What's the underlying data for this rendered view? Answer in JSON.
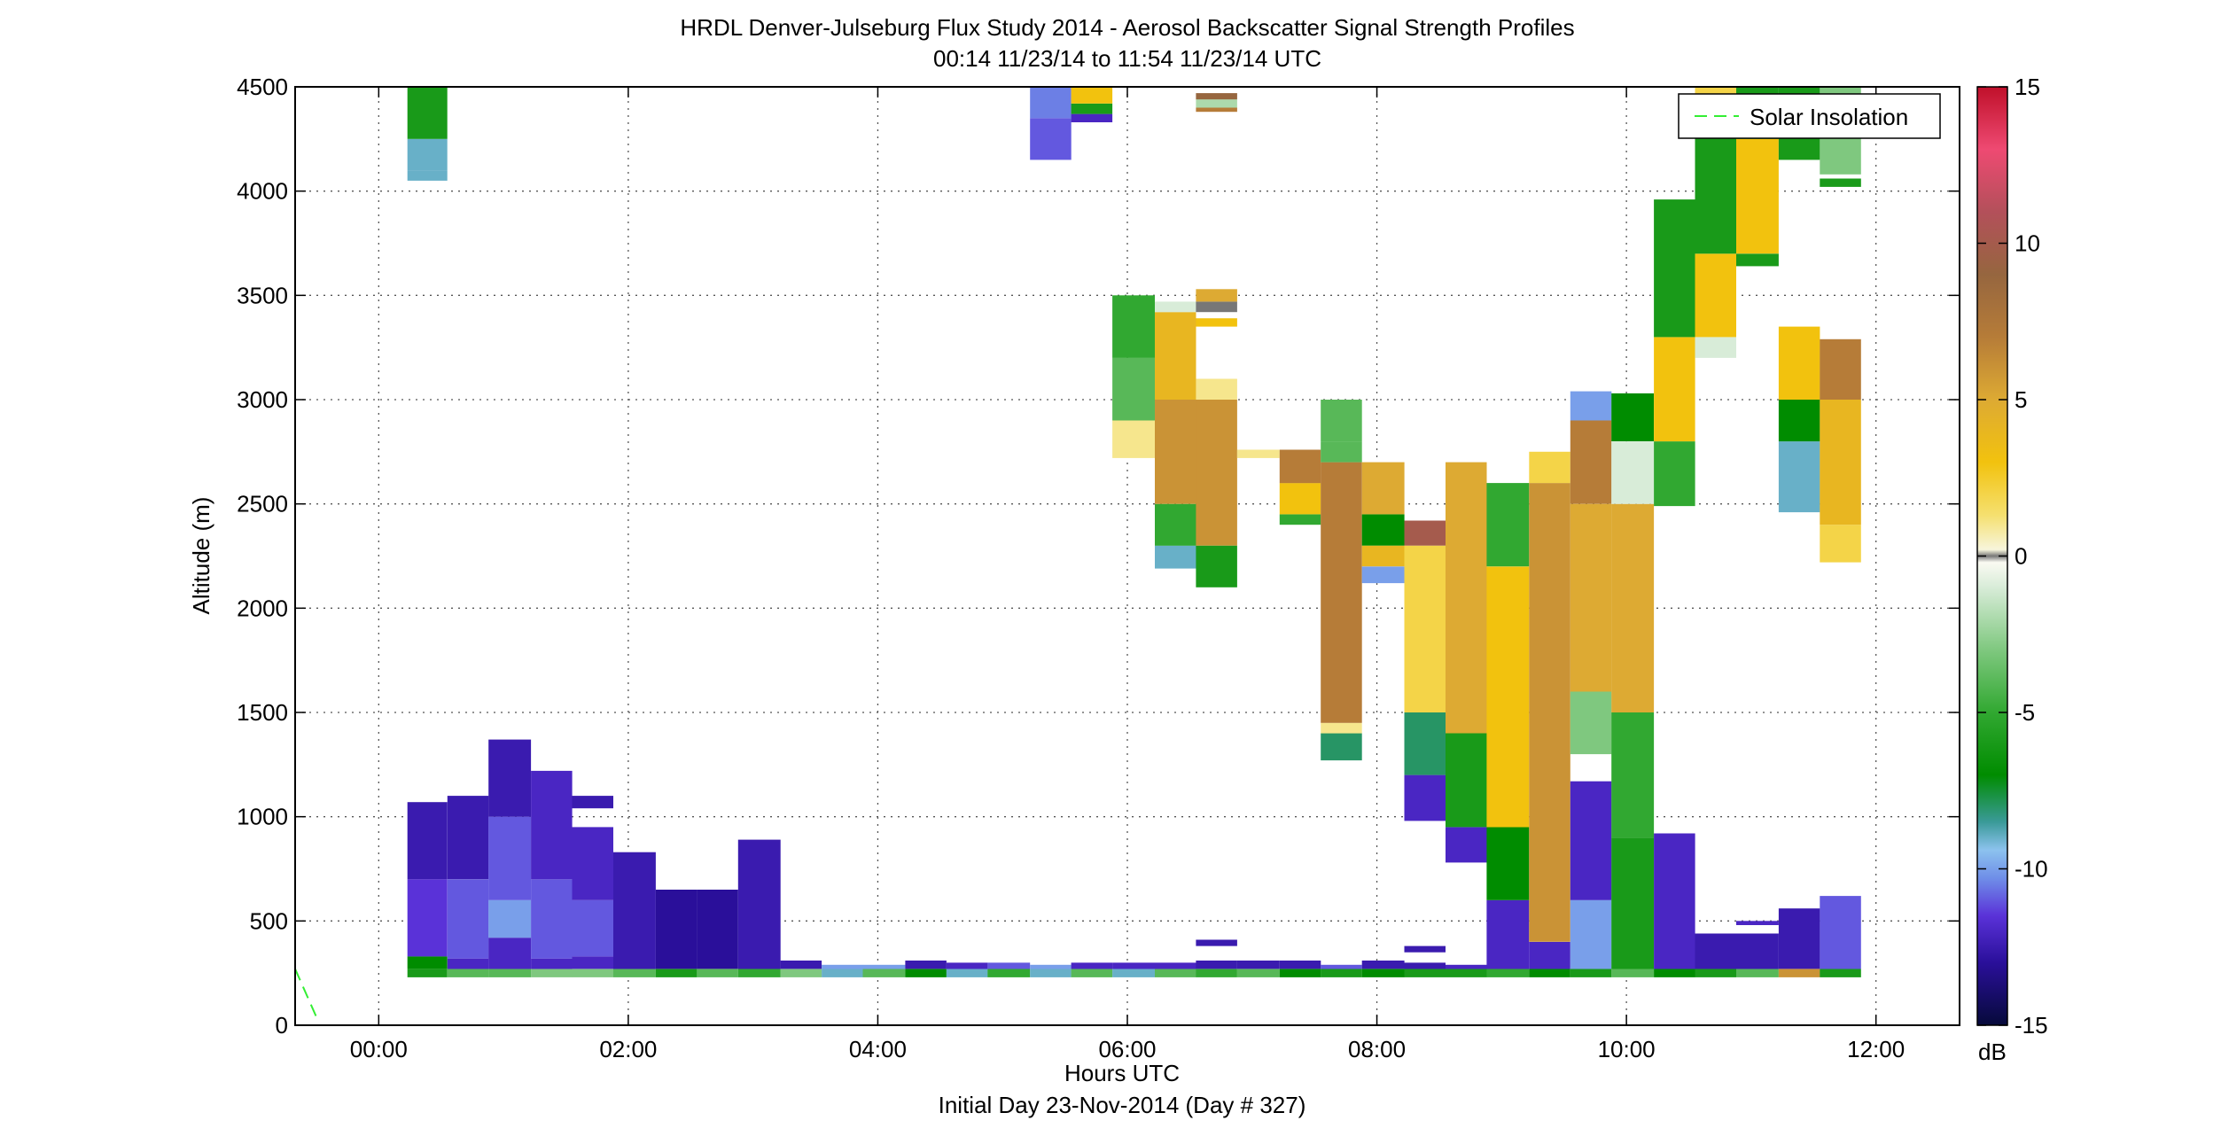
{
  "chart_data": {
    "type": "heatmap",
    "title": "HRDL Denver-Julseburg Flux Study 2014 - Aerosol Backscatter Signal Strength Profiles",
    "subtitle": "00:14 11/23/14 to 11:54 11/23/14  UTC",
    "xlabel": "Hours UTC",
    "xlabel2": "Initial Day 23-Nov-2014 (Day # 327)",
    "ylabel": "Altitude (m)",
    "colorbar_label": "dB",
    "xlim": [
      -0.67,
      12.67
    ],
    "ylim": [
      0,
      4500
    ],
    "clim": [
      -15,
      15
    ],
    "x_ticks": [
      0,
      2,
      4,
      6,
      8,
      10,
      12
    ],
    "x_tick_labels": [
      "00:00",
      "02:00",
      "04:00",
      "06:00",
      "08:00",
      "10:00",
      "12:00"
    ],
    "y_ticks": [
      0,
      500,
      1000,
      1500,
      2000,
      2500,
      3000,
      3500,
      4000,
      4500
    ],
    "y_tick_labels": [
      "0",
      "500",
      "1000",
      "1500",
      "2000",
      "2500",
      "3000",
      "3500",
      "4000",
      "4500"
    ],
    "colorbar_ticks": [
      -15,
      -10,
      -5,
      0,
      5,
      10,
      15
    ],
    "colorbar_tick_labels": [
      "-15",
      "-10",
      "-5",
      "0",
      "5",
      "10",
      "15"
    ],
    "grid": true,
    "legend": {
      "position": "top-right",
      "entries": [
        "Solar Insolation"
      ]
    },
    "solar_insolation": {
      "x": [
        -0.67,
        -0.5
      ],
      "y": [
        270,
        40
      ]
    },
    "profiles": [
      {
        "x0": 0.23,
        "x1": 0.55,
        "segments": [
          [
            230,
            270,
            -6
          ],
          [
            270,
            330,
            -7
          ],
          [
            330,
            700,
            -11.5
          ],
          [
            700,
            1070,
            -12.5
          ],
          [
            4050,
            4100,
            -9
          ],
          [
            4100,
            4250,
            -9
          ],
          [
            4250,
            4500,
            -6
          ]
        ]
      },
      {
        "x0": 0.55,
        "x1": 0.88,
        "segments": [
          [
            230,
            270,
            -4
          ],
          [
            270,
            320,
            -12
          ],
          [
            320,
            700,
            -11
          ],
          [
            700,
            1100,
            -12.5
          ]
        ]
      },
      {
        "x0": 0.88,
        "x1": 1.22,
        "segments": [
          [
            230,
            270,
            -4
          ],
          [
            270,
            420,
            -12
          ],
          [
            420,
            600,
            -10
          ],
          [
            600,
            1000,
            -11
          ],
          [
            1000,
            1370,
            -12.5
          ]
        ]
      },
      {
        "x0": 1.22,
        "x1": 1.55,
        "segments": [
          [
            230,
            270,
            -3
          ],
          [
            270,
            320,
            -12
          ],
          [
            320,
            700,
            -11
          ],
          [
            700,
            1220,
            -12
          ]
        ]
      },
      {
        "x0": 1.55,
        "x1": 1.88,
        "segments": [
          [
            230,
            270,
            -3
          ],
          [
            270,
            330,
            -12
          ],
          [
            330,
            600,
            -11
          ],
          [
            600,
            950,
            -12
          ],
          [
            1040,
            1100,
            -12.5
          ]
        ]
      },
      {
        "x0": 1.88,
        "x1": 2.22,
        "segments": [
          [
            230,
            270,
            -4
          ],
          [
            270,
            830,
            -12.5
          ]
        ]
      },
      {
        "x0": 2.22,
        "x1": 2.55,
        "segments": [
          [
            230,
            270,
            -6
          ],
          [
            270,
            650,
            -13
          ]
        ]
      },
      {
        "x0": 2.55,
        "x1": 2.88,
        "segments": [
          [
            230,
            270,
            -4
          ],
          [
            270,
            650,
            -13
          ]
        ]
      },
      {
        "x0": 2.88,
        "x1": 3.22,
        "segments": [
          [
            230,
            270,
            -5
          ],
          [
            270,
            890,
            -12.5
          ]
        ]
      },
      {
        "x0": 3.22,
        "x1": 3.55,
        "segments": [
          [
            230,
            270,
            -3
          ],
          [
            270,
            310,
            -12.5
          ]
        ]
      },
      {
        "x0": 3.55,
        "x1": 3.88,
        "segments": [
          [
            230,
            270,
            -9
          ],
          [
            270,
            290,
            -10
          ]
        ]
      },
      {
        "x0": 3.88,
        "x1": 4.22,
        "segments": [
          [
            230,
            270,
            -4
          ],
          [
            270,
            290,
            -10
          ]
        ]
      },
      {
        "x0": 4.22,
        "x1": 4.55,
        "segments": [
          [
            230,
            270,
            -7
          ],
          [
            270,
            310,
            -12.5
          ]
        ]
      },
      {
        "x0": 4.55,
        "x1": 4.88,
        "segments": [
          [
            230,
            270,
            -9
          ],
          [
            270,
            300,
            -12
          ]
        ]
      },
      {
        "x0": 4.88,
        "x1": 5.22,
        "segments": [
          [
            230,
            270,
            -5
          ],
          [
            270,
            300,
            -11
          ]
        ]
      },
      {
        "x0": 5.22,
        "x1": 5.55,
        "segments": [
          [
            230,
            270,
            -9
          ],
          [
            270,
            290,
            -10
          ],
          [
            4150,
            4350,
            -11
          ],
          [
            4350,
            4500,
            -10.5
          ]
        ]
      },
      {
        "x0": 5.55,
        "x1": 5.88,
        "segments": [
          [
            230,
            270,
            -4
          ],
          [
            270,
            300,
            -12
          ],
          [
            4330,
            4370,
            -12
          ],
          [
            4370,
            4420,
            -6
          ],
          [
            4420,
            4500,
            3
          ]
        ]
      },
      {
        "x0": 5.88,
        "x1": 6.22,
        "segments": [
          [
            230,
            270,
            -9
          ],
          [
            270,
            300,
            -12
          ],
          [
            2720,
            2900,
            1
          ],
          [
            2900,
            3200,
            -4
          ],
          [
            3200,
            3500,
            -5
          ]
        ]
      },
      {
        "x0": 6.22,
        "x1": 6.55,
        "segments": [
          [
            230,
            270,
            -4
          ],
          [
            270,
            300,
            -12
          ],
          [
            2190,
            2300,
            -9
          ],
          [
            2300,
            2500,
            -5
          ],
          [
            2500,
            3000,
            6
          ],
          [
            3000,
            3420,
            4
          ],
          [
            3420,
            3470,
            -1
          ]
        ]
      },
      {
        "x0": 6.55,
        "x1": 6.88,
        "segments": [
          [
            230,
            270,
            -5
          ],
          [
            270,
            310,
            -12.5
          ],
          [
            380,
            410,
            -12.5
          ],
          [
            2100,
            2300,
            -6
          ],
          [
            2300,
            3000,
            6
          ],
          [
            3000,
            3100,
            1
          ],
          [
            3350,
            3390,
            3
          ],
          [
            3420,
            3470,
            0
          ],
          [
            3470,
            3530,
            5
          ],
          [
            4380,
            4400,
            7
          ],
          [
            4400,
            4440,
            -2
          ],
          [
            4440,
            4470,
            9
          ]
        ]
      },
      {
        "x0": 6.88,
        "x1": 7.22,
        "segments": [
          [
            230,
            270,
            -4
          ],
          [
            270,
            310,
            -12.5
          ],
          [
            2720,
            2760,
            1
          ]
        ]
      },
      {
        "x0": 7.22,
        "x1": 7.55,
        "segments": [
          [
            230,
            270,
            -7
          ],
          [
            270,
            310,
            -12.5
          ],
          [
            2400,
            2450,
            -5
          ],
          [
            2450,
            2600,
            3
          ],
          [
            2600,
            2760,
            7
          ]
        ]
      },
      {
        "x0": 7.55,
        "x1": 7.88,
        "segments": [
          [
            230,
            270,
            -6
          ],
          [
            270,
            290,
            -11
          ],
          [
            1270,
            1400,
            -8
          ],
          [
            1400,
            1450,
            1
          ],
          [
            1450,
            2700,
            7
          ],
          [
            2700,
            2800,
            -4
          ],
          [
            2800,
            3000,
            -4
          ]
        ]
      },
      {
        "x0": 7.88,
        "x1": 8.22,
        "segments": [
          [
            230,
            270,
            -7
          ],
          [
            270,
            310,
            -12.5
          ],
          [
            2120,
            2200,
            -10
          ],
          [
            2200,
            2300,
            4
          ],
          [
            2300,
            2450,
            -7
          ],
          [
            2450,
            2700,
            5
          ]
        ]
      },
      {
        "x0": 8.22,
        "x1": 8.55,
        "segments": [
          [
            230,
            270,
            -6
          ],
          [
            270,
            300,
            -12.5
          ],
          [
            350,
            380,
            -12.5
          ],
          [
            980,
            1200,
            -12
          ],
          [
            1200,
            1500,
            -8
          ],
          [
            1500,
            2300,
            2
          ],
          [
            2300,
            2420,
            10
          ]
        ]
      },
      {
        "x0": 8.55,
        "x1": 8.88,
        "segments": [
          [
            230,
            270,
            -6
          ],
          [
            270,
            290,
            -12
          ],
          [
            780,
            950,
            -12
          ],
          [
            950,
            1400,
            -6
          ],
          [
            1400,
            2700,
            5
          ]
        ]
      },
      {
        "x0": 8.88,
        "x1": 9.22,
        "segments": [
          [
            230,
            270,
            -5
          ],
          [
            270,
            600,
            -12
          ],
          [
            600,
            950,
            -7
          ],
          [
            950,
            2200,
            3
          ],
          [
            2200,
            2600,
            -5
          ]
        ]
      },
      {
        "x0": 9.22,
        "x1": 9.55,
        "segments": [
          [
            230,
            270,
            -7
          ],
          [
            270,
            400,
            -12
          ],
          [
            400,
            2600,
            6
          ],
          [
            2600,
            2750,
            2
          ]
        ]
      },
      {
        "x0": 9.55,
        "x1": 9.88,
        "segments": [
          [
            230,
            270,
            -6
          ],
          [
            270,
            600,
            -10
          ],
          [
            600,
            1170,
            -12
          ],
          [
            1300,
            1600,
            -3
          ],
          [
            1600,
            2500,
            5
          ],
          [
            2500,
            2900,
            7
          ],
          [
            2900,
            3040,
            -10
          ]
        ]
      },
      {
        "x0": 9.88,
        "x1": 10.22,
        "segments": [
          [
            230,
            270,
            -4
          ],
          [
            270,
            900,
            -6
          ],
          [
            900,
            1500,
            -5
          ],
          [
            1500,
            2500,
            5
          ],
          [
            2500,
            2800,
            -1
          ],
          [
            2800,
            3030,
            -7
          ]
        ]
      },
      {
        "x0": 10.22,
        "x1": 10.55,
        "segments": [
          [
            230,
            270,
            -7
          ],
          [
            270,
            920,
            -12
          ],
          [
            2490,
            2800,
            -5
          ],
          [
            2800,
            3300,
            3
          ],
          [
            3300,
            3960,
            -6
          ]
        ]
      },
      {
        "x0": 10.55,
        "x1": 10.88,
        "segments": [
          [
            230,
            270,
            -6
          ],
          [
            270,
            440,
            -12.5
          ],
          [
            3200,
            3300,
            -1
          ],
          [
            3300,
            3700,
            3
          ],
          [
            3700,
            4300,
            -6
          ],
          [
            4300,
            4500,
            2
          ]
        ]
      },
      {
        "x0": 10.88,
        "x1": 11.22,
        "segments": [
          [
            230,
            270,
            -4
          ],
          [
            270,
            440,
            -12.5
          ],
          [
            480,
            500,
            -12
          ],
          [
            3640,
            3700,
            -6
          ],
          [
            3700,
            4250,
            3
          ],
          [
            4250,
            4500,
            -6
          ]
        ]
      },
      {
        "x0": 11.22,
        "x1": 11.55,
        "segments": [
          [
            230,
            270,
            6
          ],
          [
            270,
            560,
            -12.5
          ],
          [
            2460,
            2800,
            -9
          ],
          [
            2800,
            3000,
            -7
          ],
          [
            3000,
            3350,
            3
          ],
          [
            4150,
            4500,
            -6
          ]
        ]
      },
      {
        "x0": 11.55,
        "x1": 11.88,
        "segments": [
          [
            230,
            270,
            -6
          ],
          [
            270,
            620,
            -11
          ],
          [
            2220,
            2400,
            2
          ],
          [
            2400,
            3000,
            4
          ],
          [
            3000,
            3290,
            7
          ],
          [
            4020,
            4060,
            -6
          ],
          [
            4080,
            4500,
            -3
          ]
        ]
      }
    ]
  }
}
